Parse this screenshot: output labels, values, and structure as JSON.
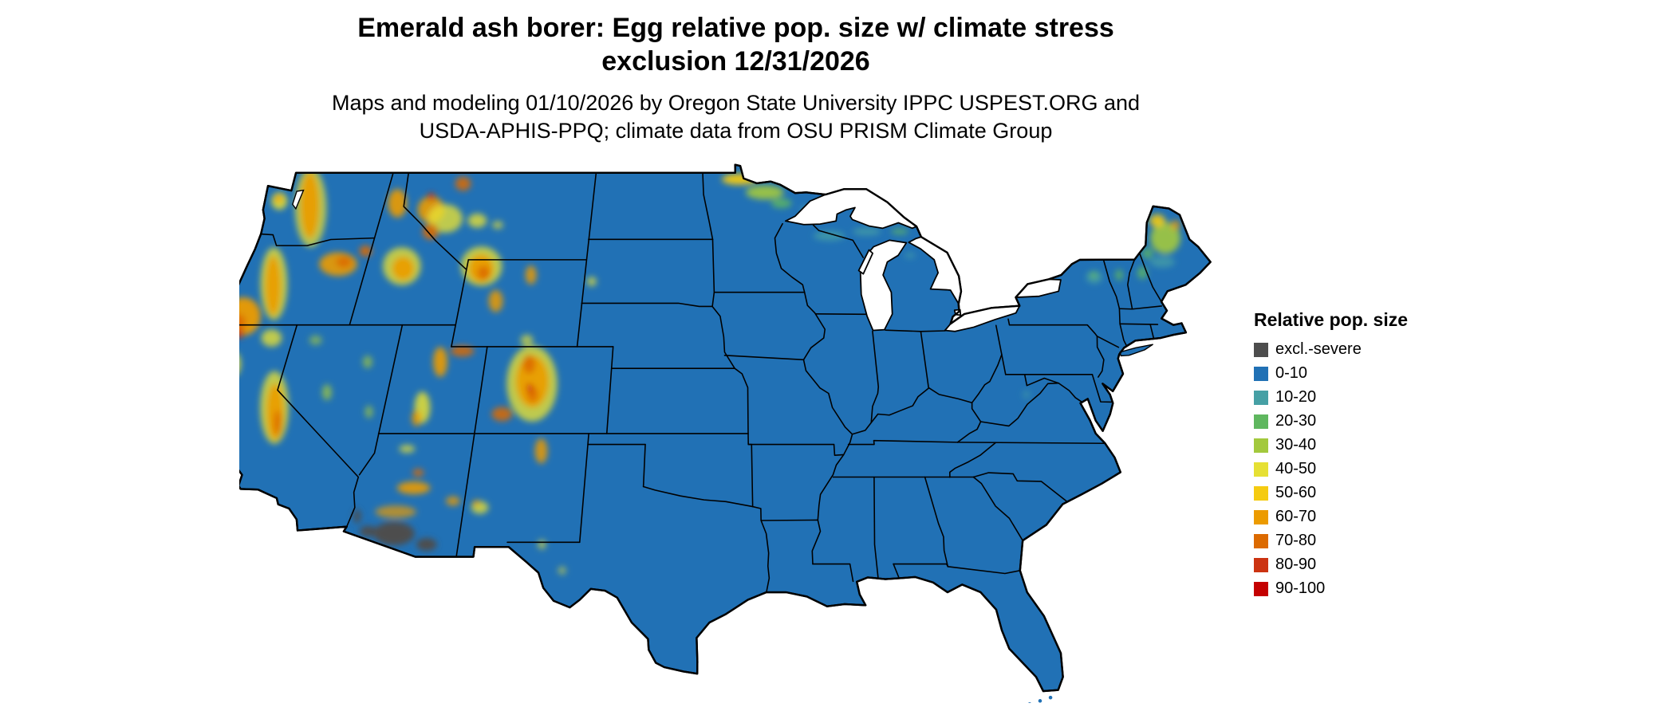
{
  "header": {
    "title_line1": "Emerald ash borer: Egg relative pop. size w/ climate stress",
    "title_line2": "exclusion 12/31/2026",
    "subtitle_line1": "Maps and modeling 01/10/2026 by Oregon State University IPPC USPEST.ORG and",
    "subtitle_line2": "USDA-APHIS-PPQ; climate data from OSU PRISM Climate Group"
  },
  "map": {
    "region": "Contiguous United States",
    "land_color": "#2171B5",
    "water_color": "#FFFFFF",
    "border_color": "#000000"
  },
  "legend": {
    "title": "Relative pop. size",
    "items": [
      {
        "label": "excl.-severe",
        "color": "#4D4D4D"
      },
      {
        "label": "0-10",
        "color": "#2171B5"
      },
      {
        "label": "10-20",
        "color": "#46A0A5"
      },
      {
        "label": "20-30",
        "color": "#5FB75F"
      },
      {
        "label": "30-40",
        "color": "#A3C93D"
      },
      {
        "label": "40-50",
        "color": "#E6E034"
      },
      {
        "label": "50-60",
        "color": "#F5CB11"
      },
      {
        "label": "60-70",
        "color": "#EC9B00"
      },
      {
        "label": "70-80",
        "color": "#DC6A00"
      },
      {
        "label": "80-90",
        "color": "#CC3311"
      },
      {
        "label": "90-100",
        "color": "#C40000"
      }
    ]
  }
}
